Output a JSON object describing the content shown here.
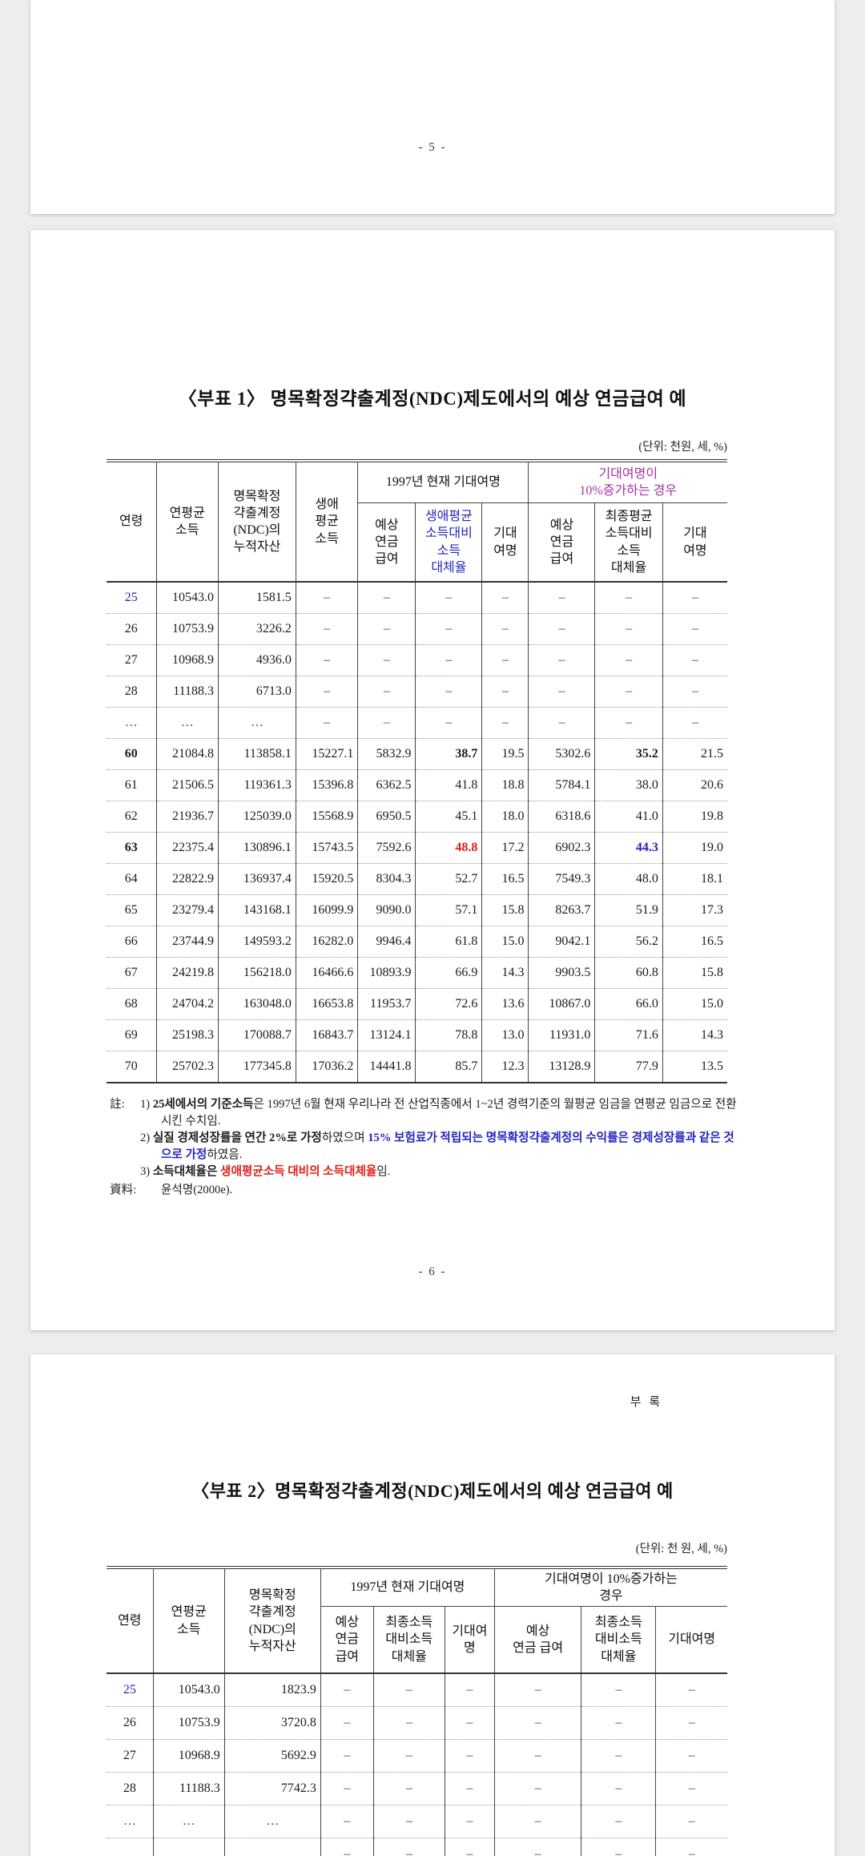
{
  "page5": {
    "number": "- 5 -"
  },
  "page6": {
    "title": "〈부표 1〉 명목확정갹출계정(NDC)제도에서의 예상 연금급여 예",
    "unit": "(단위: 천원, 세, %)",
    "number": "- 6 -",
    "table": {
      "headers": {
        "age": "연령",
        "avg_income": "연평균\n소득",
        "ndc_assets": "명목확정\n갹출계정\n(NDC)의\n누적자산",
        "lifetime_avg_income": "생애\n평균\n소득",
        "group_1997": "1997년 현재 기대여명",
        "group_10pct": "기대여명이\n10%증가하는 경우",
        "expected_pension_1": "예상\n연금\n급여",
        "replacement_1": "생애평균\n소득대비\n소득\n대체율",
        "life_expectancy_1": "기대\n여명",
        "expected_pension_2": "예상\n연금\n급여",
        "replacement_2": "최종평균\n소득대비\n소득\n대체율",
        "life_expectancy_2": "기대\n여명"
      },
      "rows": [
        [
          {
            "t": "25",
            "s": "blue"
          },
          "10543.0",
          "1581.5",
          "–",
          "–",
          "–",
          "–",
          "–",
          "–",
          "–"
        ],
        [
          "26",
          "10753.9",
          "3226.2",
          "–",
          "–",
          "–",
          "–",
          "–",
          "–",
          "–"
        ],
        [
          "27",
          "10968.9",
          "4936.0",
          "–",
          "–",
          "–",
          "–",
          "–",
          "–",
          "–"
        ],
        [
          "28",
          "11188.3",
          "6713.0",
          "–",
          "–",
          "–",
          "–",
          "–",
          "–",
          "–"
        ],
        [
          "…",
          "…",
          "…",
          "–",
          "–",
          "–",
          "–",
          "–",
          "–",
          "–"
        ],
        [
          {
            "t": "60",
            "s": "b"
          },
          "21084.8",
          "113858.1",
          "15227.1",
          "5832.9",
          {
            "t": "38.7",
            "s": "b"
          },
          "19.5",
          "5302.6",
          {
            "t": "35.2",
            "s": "b"
          },
          "21.5"
        ],
        [
          "61",
          "21506.5",
          "119361.3",
          "15396.8",
          "6362.5",
          "41.8",
          "18.8",
          "5784.1",
          "38.0",
          "20.6"
        ],
        [
          "62",
          "21936.7",
          "125039.0",
          "15568.9",
          "6950.5",
          "45.1",
          "18.0",
          "6318.6",
          "41.0",
          "19.8"
        ],
        [
          {
            "t": "63",
            "s": "b"
          },
          "22375.4",
          "130896.1",
          "15743.5",
          "7592.6",
          {
            "t": "48.8",
            "s": "red b"
          },
          "17.2",
          "6902.3",
          {
            "t": "44.3",
            "s": "blue b"
          },
          "19.0"
        ],
        [
          "64",
          "22822.9",
          "136937.4",
          "15920.5",
          "8304.3",
          "52.7",
          "16.5",
          "7549.3",
          "48.0",
          "18.1"
        ],
        [
          "65",
          "23279.4",
          "143168.1",
          "16099.9",
          "9090.0",
          "57.1",
          "15.8",
          "8263.7",
          "51.9",
          "17.3"
        ],
        [
          "66",
          "23744.9",
          "149593.2",
          "16282.0",
          "9946.4",
          "61.8",
          "15.0",
          "9042.1",
          "56.2",
          "16.5"
        ],
        [
          "67",
          "24219.8",
          "156218.0",
          "16466.6",
          "10893.9",
          "66.9",
          "14.3",
          "9903.5",
          "60.8",
          "15.8"
        ],
        [
          "68",
          "24704.2",
          "163048.0",
          "16653.8",
          "11953.7",
          "72.6",
          "13.6",
          "10867.0",
          "66.0",
          "15.0"
        ],
        [
          "69",
          "25198.3",
          "170088.7",
          "16843.7",
          "13124.1",
          "78.8",
          "13.0",
          "11931.0",
          "71.6",
          "14.3"
        ],
        [
          "70",
          "25702.3",
          "177345.8",
          "17036.2",
          "14441.8",
          "85.7",
          "12.3",
          "13128.9",
          "77.9",
          "13.5"
        ]
      ]
    },
    "notes": {
      "label": "註:",
      "items": [
        {
          "num": "1)",
          "segments": [
            {
              "t": "25세에서의 기준소득",
              "s": "b"
            },
            {
              "t": "은 1997년 6월 현재 우리나라 전 산업직종에서 1~2년 경력기준의 월평균 임금을 연평균 임금으로 전환시킨 수치임."
            }
          ]
        },
        {
          "num": "2)",
          "segments": [
            {
              "t": "실질 경제성장률을 연간 2%로 가정",
              "s": "b"
            },
            {
              "t": "하였으며 "
            },
            {
              "t": "15% 보험료가 적립되는 명목확정갹출계정의 수익률은 경제성장률과 같은 것으로 가정",
              "s": "blue b"
            },
            {
              "t": "하였음."
            }
          ]
        },
        {
          "num": "3)",
          "segments": [
            {
              "t": "소득대체율은 ",
              "s": "b"
            },
            {
              "t": "생애평균소득 대비의 소득대체율",
              "s": "red b"
            },
            {
              "t": "임."
            }
          ]
        }
      ],
      "source_label": "資料:",
      "source": "윤석명(2000e)."
    }
  },
  "page7": {
    "appendix_label": "부 록",
    "title": "〈부표 2〉명목확정갹출계정(NDC)제도에서의 예상 연금급여 예",
    "unit": "(단위: 천 원, 세, %)",
    "table": {
      "headers": {
        "age": "연령",
        "avg_income": "연평균\n소득",
        "ndc_assets": "명목확정\n갹출계정\n(NDC)의\n누적자산",
        "group_1997": "1997년 현재 기대여명",
        "group_10pct": "기대여명이 10%증가하는\n경우",
        "expected_pension_1": "예상\n연금\n급여",
        "replacement_1": "최종소득\n대비소득\n대체율",
        "life_expectancy_1": "기대여\n명",
        "expected_pension_2": "예상\n연금 급여",
        "replacement_2": "최종소득\n대비소득\n대체율",
        "life_expectancy_2": "기대여명"
      },
      "rows": [
        [
          {
            "t": "25",
            "s": "blue"
          },
          "10543.0",
          "1823.9",
          "–",
          "–",
          "–",
          "–",
          "–",
          "–"
        ],
        [
          "26",
          "10753.9",
          "3720.8",
          "–",
          "–",
          "–",
          "–",
          "–",
          "–"
        ],
        [
          "27",
          "10968.9",
          "5692.9",
          "–",
          "–",
          "–",
          "–",
          "–",
          "–"
        ],
        [
          "28",
          "11188.3",
          "7742.3",
          "–",
          "–",
          "–",
          "–",
          "–",
          "–"
        ],
        [
          "…",
          "…",
          "…",
          "–",
          "–",
          "–",
          "–",
          "–",
          "–"
        ],
        [
          "…",
          "…",
          "…",
          "–",
          "–",
          "–",
          "–",
          "–",
          "–"
        ]
      ]
    }
  }
}
